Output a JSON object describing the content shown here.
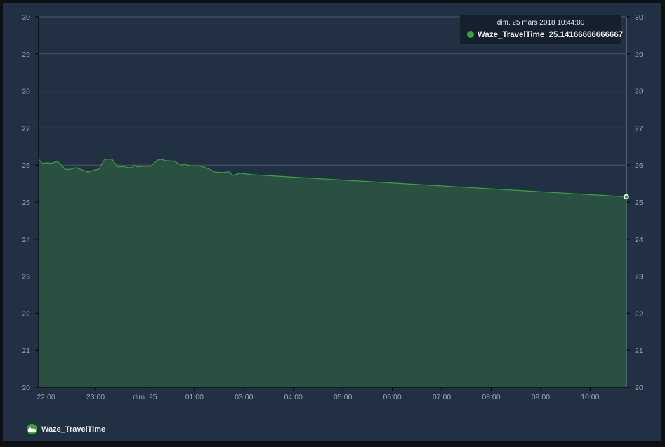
{
  "chart_data": {
    "type": "area",
    "series": [
      {
        "name": "Waze_TravelTime",
        "color": "#3aa33a",
        "points": [
          [
            "2018-03-24T20:51:00Z",
            26.16
          ],
          [
            "2018-03-24T20:56:00Z",
            26.04
          ],
          [
            "2018-03-24T21:00:00Z",
            26.06
          ],
          [
            "2018-03-24T21:07:00Z",
            26.05
          ],
          [
            "2018-03-24T21:12:00Z",
            26.09
          ],
          [
            "2018-03-24T21:15:00Z",
            26.08
          ],
          [
            "2018-03-24T21:23:00Z",
            25.89
          ],
          [
            "2018-03-24T21:29:00Z",
            25.88
          ],
          [
            "2018-03-24T21:36:00Z",
            25.93
          ],
          [
            "2018-03-24T21:44:00Z",
            25.87
          ],
          [
            "2018-03-24T21:51:00Z",
            25.81
          ],
          [
            "2018-03-24T21:59:00Z",
            25.87
          ],
          [
            "2018-03-24T22:04:00Z",
            25.89
          ],
          [
            "2018-03-24T22:11:00Z",
            26.16
          ],
          [
            "2018-03-24T22:20:00Z",
            26.16
          ],
          [
            "2018-03-24T22:27:00Z",
            25.95
          ],
          [
            "2018-03-24T22:34:00Z",
            25.96
          ],
          [
            "2018-03-24T22:40:00Z",
            25.93
          ],
          [
            "2018-03-24T22:44:00Z",
            25.93
          ],
          [
            "2018-03-24T22:47:00Z",
            25.99
          ],
          [
            "2018-03-24T22:51:00Z",
            25.95
          ],
          [
            "2018-03-24T22:57:00Z",
            25.97
          ],
          [
            "2018-03-24T23:07:00Z",
            25.97
          ],
          [
            "2018-03-24T23:15:00Z",
            26.13
          ],
          [
            "2018-03-24T23:20:00Z",
            26.16
          ],
          [
            "2018-03-24T23:25:00Z",
            26.12
          ],
          [
            "2018-03-24T23:35:00Z",
            26.11
          ],
          [
            "2018-03-24T23:44:00Z",
            26.0
          ],
          [
            "2018-03-24T23:48:00Z",
            26.02
          ],
          [
            "2018-03-24T23:55:00Z",
            25.98
          ],
          [
            "2018-03-25T00:06:00Z",
            25.98
          ],
          [
            "2018-03-25T00:15:00Z",
            25.92
          ],
          [
            "2018-03-25T00:25:00Z",
            25.81
          ],
          [
            "2018-03-25T00:35:00Z",
            25.8
          ],
          [
            "2018-03-25T00:42:00Z",
            25.82
          ],
          [
            "2018-03-25T00:47:00Z",
            25.72
          ],
          [
            "2018-03-25T00:55:00Z",
            25.78
          ],
          [
            "2018-03-25T01:09:00Z",
            25.74
          ],
          [
            "2018-03-25T08:44:00Z",
            25.1416666666667
          ]
        ]
      }
    ],
    "xlim": [
      "2018-03-24T20:51:00Z",
      "2018-03-25T08:44:00Z"
    ],
    "ylim": [
      20,
      30
    ],
    "y_ticks": [
      20,
      21,
      22,
      23,
      24,
      25,
      26,
      27,
      28,
      29,
      30
    ],
    "y_axes": [
      "left",
      "right"
    ],
    "x_ticks": [
      {
        "label": "22:00",
        "time": "2018-03-24T21:00:00Z"
      },
      {
        "label": "23:00",
        "time": "2018-03-24T22:00:00Z"
      },
      {
        "label": "dim. 25",
        "time": "2018-03-24T23:00:00Z"
      },
      {
        "label": "01:00",
        "time": "2018-03-25T00:00:00Z"
      },
      {
        "label": "03:00",
        "time": "2018-03-25T01:00:00Z"
      },
      {
        "label": "04:00",
        "time": "2018-03-25T02:00:00Z"
      },
      {
        "label": "05:00",
        "time": "2018-03-25T03:00:00Z"
      },
      {
        "label": "06:00",
        "time": "2018-03-25T04:00:00Z"
      },
      {
        "label": "07:00",
        "time": "2018-03-25T05:00:00Z"
      },
      {
        "label": "08:00",
        "time": "2018-03-25T06:00:00Z"
      },
      {
        "label": "09:00",
        "time": "2018-03-25T07:00:00Z"
      },
      {
        "label": "10:00",
        "time": "2018-03-25T08:00:00Z"
      }
    ],
    "grid": true,
    "legend": "bottom-left"
  },
  "tooltip": {
    "time": "dim. 25 mars 2018 10:44:00",
    "series": "Waze_TravelTime",
    "value": "25.14166666666667"
  },
  "legend": {
    "label": "Waze_TravelTime"
  }
}
